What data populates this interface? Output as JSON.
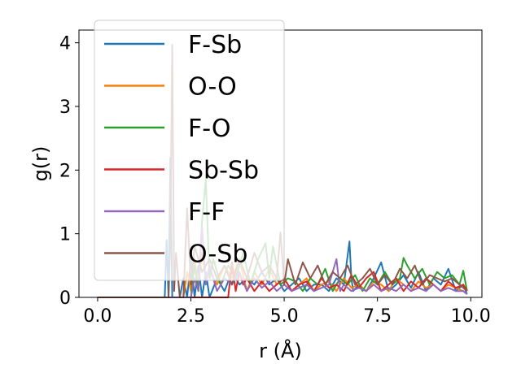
{
  "chart_data": {
    "type": "line",
    "xlabel": "r (Å)",
    "ylabel": "g(r)",
    "xlim": [
      -0.5,
      10.3
    ],
    "ylim": [
      0,
      4.2
    ],
    "xticks": [
      0.0,
      2.5,
      5.0,
      7.5,
      10.0
    ],
    "xtick_labels": [
      "0.0",
      "2.5",
      "5.0",
      "7.5",
      "10.0"
    ],
    "yticks": [
      0,
      1,
      2,
      3,
      4
    ],
    "ytick_labels": [
      "0",
      "1",
      "2",
      "3",
      "4"
    ],
    "grid": false,
    "legend_position": "upper-left",
    "series": [
      {
        "name": "F-Sb",
        "color": "#1f77b4",
        "x": [
          0.0,
          1.8,
          1.85,
          1.9,
          1.95,
          2.0,
          2.05,
          2.1,
          2.15,
          2.2,
          2.3,
          2.4,
          2.5,
          2.6,
          2.7,
          2.8,
          2.9,
          3.0,
          3.2,
          3.4,
          3.6,
          3.8,
          4.0,
          4.2,
          4.4,
          4.6,
          4.8,
          5.0,
          5.2,
          5.4,
          5.6,
          5.8,
          6.0,
          6.2,
          6.4,
          6.6,
          6.75,
          6.8,
          6.85,
          7.0,
          7.2,
          7.4,
          7.6,
          7.8,
          8.0,
          8.2,
          8.4,
          8.6,
          8.8,
          9.0,
          9.2,
          9.4,
          9.6,
          9.8,
          9.9
        ],
        "y": [
          0.0,
          0.0,
          0.9,
          0.0,
          2.2,
          0.0,
          0.0,
          0.0,
          0.0,
          0.0,
          0.3,
          0.0,
          0.6,
          0.0,
          0.5,
          0.0,
          0.4,
          0.0,
          0.3,
          0.1,
          0.4,
          0.2,
          0.3,
          0.2,
          0.4,
          0.2,
          0.3,
          0.1,
          0.2,
          0.3,
          0.1,
          0.2,
          0.2,
          0.1,
          0.3,
          0.2,
          0.88,
          0.3,
          0.1,
          0.2,
          0.1,
          0.3,
          0.55,
          0.1,
          0.2,
          0.35,
          0.15,
          0.4,
          0.1,
          0.3,
          0.2,
          0.45,
          0.1,
          0.2,
          0.05
        ]
      },
      {
        "name": "O-O",
        "color": "#ff7f0e",
        "x": [
          0.0,
          2.3,
          2.4,
          2.5,
          2.6,
          2.7,
          2.8,
          2.9,
          3.0,
          3.2,
          3.4,
          3.6,
          3.8,
          4.0,
          4.2,
          4.4,
          4.6,
          4.8,
          5.0,
          5.2,
          5.4,
          5.6,
          5.8,
          6.0,
          6.2,
          6.4,
          6.6,
          6.8,
          7.0,
          7.2,
          7.4,
          7.6,
          7.8,
          8.0,
          8.2,
          8.4,
          8.6,
          8.8,
          9.0,
          9.2,
          9.4,
          9.6,
          9.8,
          9.9
        ],
        "y": [
          0.0,
          0.0,
          0.4,
          0.1,
          0.6,
          0.2,
          0.7,
          0.3,
          0.4,
          0.2,
          0.5,
          0.3,
          0.6,
          0.1,
          0.4,
          0.2,
          0.45,
          0.2,
          0.3,
          0.1,
          0.2,
          0.3,
          0.1,
          0.2,
          0.25,
          0.1,
          0.3,
          0.15,
          0.2,
          0.1,
          0.25,
          0.2,
          0.1,
          0.3,
          0.2,
          0.1,
          0.25,
          0.15,
          0.2,
          0.1,
          0.2,
          0.15,
          0.1,
          0.05
        ]
      },
      {
        "name": "F-O",
        "color": "#2ca02c",
        "x": [
          0.0,
          2.5,
          2.6,
          2.7,
          2.8,
          2.9,
          3.0,
          3.1,
          3.3,
          3.5,
          3.7,
          3.9,
          4.1,
          4.3,
          4.5,
          4.6,
          4.7,
          4.9,
          5.1,
          5.3,
          5.5,
          5.7,
          5.9,
          6.1,
          6.3,
          6.5,
          6.7,
          6.9,
          7.1,
          7.3,
          7.5,
          7.7,
          7.9,
          8.1,
          8.2,
          8.3,
          8.5,
          8.7,
          8.9,
          9.1,
          9.3,
          9.5,
          9.7,
          9.8,
          9.9
        ],
        "y": [
          0.0,
          0.0,
          0.5,
          0.1,
          1.2,
          1.85,
          0.3,
          0.6,
          0.2,
          0.5,
          0.3,
          0.7,
          0.2,
          0.6,
          0.85,
          0.3,
          0.8,
          0.2,
          0.3,
          0.25,
          0.1,
          0.3,
          0.2,
          0.45,
          0.1,
          0.3,
          0.2,
          0.35,
          0.1,
          0.3,
          0.2,
          0.4,
          0.2,
          0.3,
          0.62,
          0.5,
          0.3,
          0.45,
          0.2,
          0.4,
          0.3,
          0.35,
          0.2,
          0.42,
          0.1
        ]
      },
      {
        "name": "Sb-Sb",
        "color": "#d62728",
        "x": [
          0.0,
          3.5,
          3.6,
          3.7,
          3.8,
          3.9,
          4.0,
          4.2,
          4.4,
          4.6,
          4.8,
          5.0,
          5.2,
          5.4,
          5.6,
          5.8,
          6.0,
          6.2,
          6.4,
          6.6,
          6.8,
          7.0,
          7.2,
          7.4,
          7.6,
          7.8,
          8.0,
          8.2,
          8.4,
          8.6,
          8.8,
          9.0,
          9.2,
          9.4,
          9.6,
          9.8,
          9.9
        ],
        "y": [
          0.0,
          0.0,
          0.55,
          0.1,
          0.4,
          0.2,
          0.3,
          0.1,
          0.25,
          0.1,
          0.2,
          0.3,
          0.1,
          0.2,
          0.25,
          0.1,
          0.3,
          0.15,
          0.2,
          0.1,
          0.35,
          0.15,
          0.3,
          0.4,
          0.1,
          0.2,
          0.3,
          0.1,
          0.25,
          0.15,
          0.3,
          0.2,
          0.1,
          0.25,
          0.15,
          0.2,
          0.1
        ]
      },
      {
        "name": "F-F",
        "color": "#9467bd",
        "x": [
          0.0,
          2.5,
          2.6,
          2.7,
          2.8,
          2.9,
          3.0,
          3.2,
          3.4,
          3.6,
          3.8,
          4.0,
          4.2,
          4.4,
          4.6,
          4.8,
          5.0,
          5.2,
          5.4,
          5.6,
          5.8,
          6.0,
          6.2,
          6.4,
          6.5,
          6.6,
          6.8,
          7.0,
          7.2,
          7.4,
          7.6,
          7.8,
          8.0,
          8.2,
          8.4,
          8.6,
          8.8,
          9.0,
          9.2,
          9.4,
          9.6,
          9.8,
          9.9
        ],
        "y": [
          0.0,
          0.0,
          0.3,
          0.1,
          1.1,
          0.2,
          0.5,
          0.1,
          0.3,
          0.2,
          0.4,
          0.1,
          0.3,
          0.15,
          0.25,
          0.1,
          0.2,
          0.1,
          0.15,
          0.2,
          0.1,
          0.15,
          0.2,
          0.6,
          0.1,
          0.2,
          0.1,
          0.15,
          0.1,
          0.2,
          0.1,
          0.15,
          0.1,
          0.2,
          0.1,
          0.15,
          0.1,
          0.2,
          0.1,
          0.15,
          0.1,
          0.1,
          0.05
        ]
      },
      {
        "name": "O-Sb",
        "color": "#8c564b",
        "x": [
          0.0,
          1.9,
          1.95,
          2.0,
          2.05,
          2.1,
          2.2,
          2.3,
          2.4,
          2.5,
          2.6,
          2.8,
          3.0,
          3.2,
          3.4,
          3.6,
          3.8,
          4.0,
          4.2,
          4.4,
          4.6,
          4.8,
          4.9,
          5.0,
          5.1,
          5.3,
          5.5,
          5.7,
          5.9,
          6.1,
          6.3,
          6.5,
          6.7,
          6.9,
          7.1,
          7.3,
          7.5,
          7.7,
          7.9,
          8.1,
          8.3,
          8.5,
          8.7,
          8.9,
          9.1,
          9.3,
          9.5,
          9.7,
          9.9
        ],
        "y": [
          0.0,
          0.0,
          0.9,
          3.97,
          0.1,
          0.7,
          0.0,
          0.0,
          1.4,
          0.2,
          0.8,
          0.4,
          0.6,
          0.3,
          0.5,
          0.2,
          0.6,
          0.3,
          0.7,
          0.4,
          0.5,
          0.3,
          1.02,
          0.2,
          0.6,
          0.2,
          0.55,
          0.3,
          0.5,
          0.2,
          0.4,
          0.3,
          0.5,
          0.2,
          0.3,
          0.45,
          0.2,
          0.35,
          0.2,
          0.45,
          0.3,
          0.5,
          0.2,
          0.35,
          0.3,
          0.25,
          0.3,
          0.2,
          0.1
        ]
      }
    ]
  }
}
